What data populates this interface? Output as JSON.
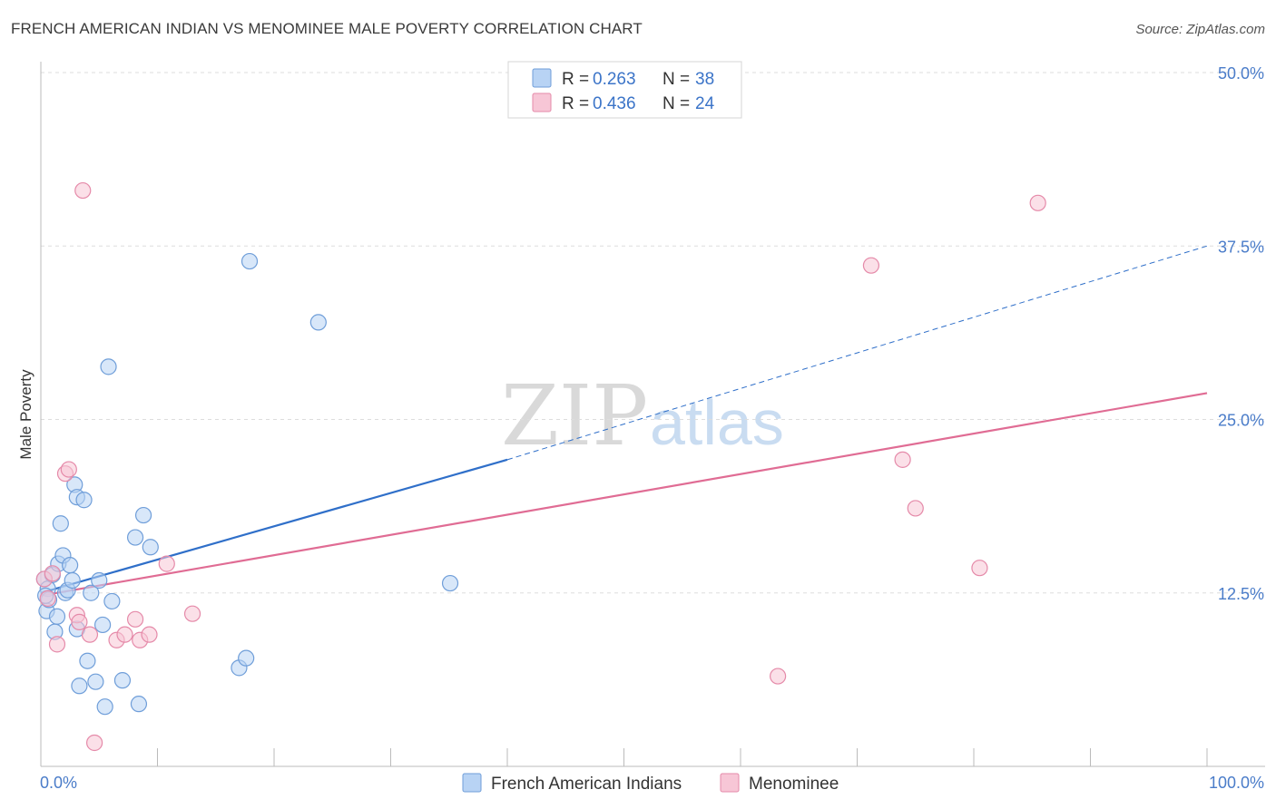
{
  "title": "FRENCH AMERICAN INDIAN VS MENOMINEE MALE POVERTY CORRELATION CHART",
  "source": "Source: ZipAtlas.com",
  "watermark": {
    "zip": "ZIP",
    "atlas": "atlas"
  },
  "colors": {
    "blue_fill": "#b8d3f4",
    "blue_stroke": "#6f9ed9",
    "blue_line": "#2f6fc9",
    "pink_fill": "#f7c6d6",
    "pink_stroke": "#e58aa9",
    "pink_line": "#e06c94",
    "grid": "#dddddd",
    "tick_label": "#4a7cc9"
  },
  "legend": {
    "rows": [
      {
        "r_label": "R =",
        "r_value": "0.263",
        "n_label": "N =",
        "n_value": "38"
      },
      {
        "r_label": "R =",
        "r_value": "0.436",
        "n_label": "N =",
        "n_value": "24"
      }
    ]
  },
  "chart_data": {
    "type": "scatter",
    "title": "FRENCH AMERICAN INDIAN VS MENOMINEE MALE POVERTY CORRELATION CHART",
    "xlabel": "",
    "ylabel": "Male Poverty",
    "xlim": [
      0,
      100
    ],
    "ylim": [
      0,
      50
    ],
    "x_tick_labels": [
      "0.0%",
      "100.0%"
    ],
    "y_ticks": [
      12.5,
      25.0,
      37.5,
      50.0
    ],
    "y_tick_labels": [
      "12.5%",
      "25.0%",
      "37.5%",
      "50.0%"
    ],
    "series": [
      {
        "name": "French American Indians",
        "r": 0.263,
        "n": 38,
        "points": [
          [
            0.3,
            13.5
          ],
          [
            0.5,
            11.2
          ],
          [
            0.6,
            12.8
          ],
          [
            0.7,
            12.0
          ],
          [
            1.0,
            13.8
          ],
          [
            1.2,
            9.7
          ],
          [
            1.4,
            10.8
          ],
          [
            1.5,
            14.6
          ],
          [
            1.7,
            17.5
          ],
          [
            1.9,
            15.2
          ],
          [
            2.1,
            12.5
          ],
          [
            2.3,
            12.7
          ],
          [
            2.5,
            14.5
          ],
          [
            2.7,
            13.4
          ],
          [
            2.9,
            20.3
          ],
          [
            3.1,
            9.9
          ],
          [
            3.1,
            19.4
          ],
          [
            3.3,
            5.8
          ],
          [
            3.7,
            19.2
          ],
          [
            4.0,
            7.6
          ],
          [
            4.3,
            12.5
          ],
          [
            4.7,
            6.1
          ],
          [
            5.0,
            13.4
          ],
          [
            5.3,
            10.2
          ],
          [
            5.5,
            4.3
          ],
          [
            5.8,
            28.8
          ],
          [
            6.1,
            11.9
          ],
          [
            7.0,
            6.2
          ],
          [
            8.1,
            16.5
          ],
          [
            8.4,
            4.5
          ],
          [
            8.8,
            18.1
          ],
          [
            9.4,
            15.8
          ],
          [
            17.0,
            7.1
          ],
          [
            17.6,
            7.8
          ],
          [
            17.9,
            36.4
          ],
          [
            23.8,
            32.0
          ],
          [
            35.1,
            13.2
          ],
          [
            0.4,
            12.3
          ]
        ],
        "trend": {
          "x": [
            0,
            40
          ],
          "y": [
            12.5,
            22.1
          ],
          "extended_x": [
            40,
            100
          ],
          "extended_y": [
            22.1,
            37.5
          ]
        }
      },
      {
        "name": "Menominee",
        "r": 0.436,
        "n": 24,
        "points": [
          [
            0.3,
            13.5
          ],
          [
            0.6,
            12.1
          ],
          [
            1.0,
            13.9
          ],
          [
            1.4,
            8.8
          ],
          [
            2.1,
            21.1
          ],
          [
            2.4,
            21.4
          ],
          [
            3.1,
            10.9
          ],
          [
            3.3,
            10.4
          ],
          [
            3.6,
            41.5
          ],
          [
            4.2,
            9.5
          ],
          [
            4.6,
            1.7
          ],
          [
            6.5,
            9.1
          ],
          [
            7.2,
            9.5
          ],
          [
            8.1,
            10.6
          ],
          [
            8.5,
            9.1
          ],
          [
            9.3,
            9.5
          ],
          [
            10.8,
            14.6
          ],
          [
            13.0,
            11.0
          ],
          [
            63.2,
            6.5
          ],
          [
            71.2,
            36.1
          ],
          [
            73.9,
            22.1
          ],
          [
            75.0,
            18.6
          ],
          [
            80.5,
            14.3
          ],
          [
            85.5,
            40.6
          ]
        ],
        "trend": {
          "x": [
            0,
            100
          ],
          "y": [
            12.3,
            26.9
          ]
        }
      }
    ]
  }
}
